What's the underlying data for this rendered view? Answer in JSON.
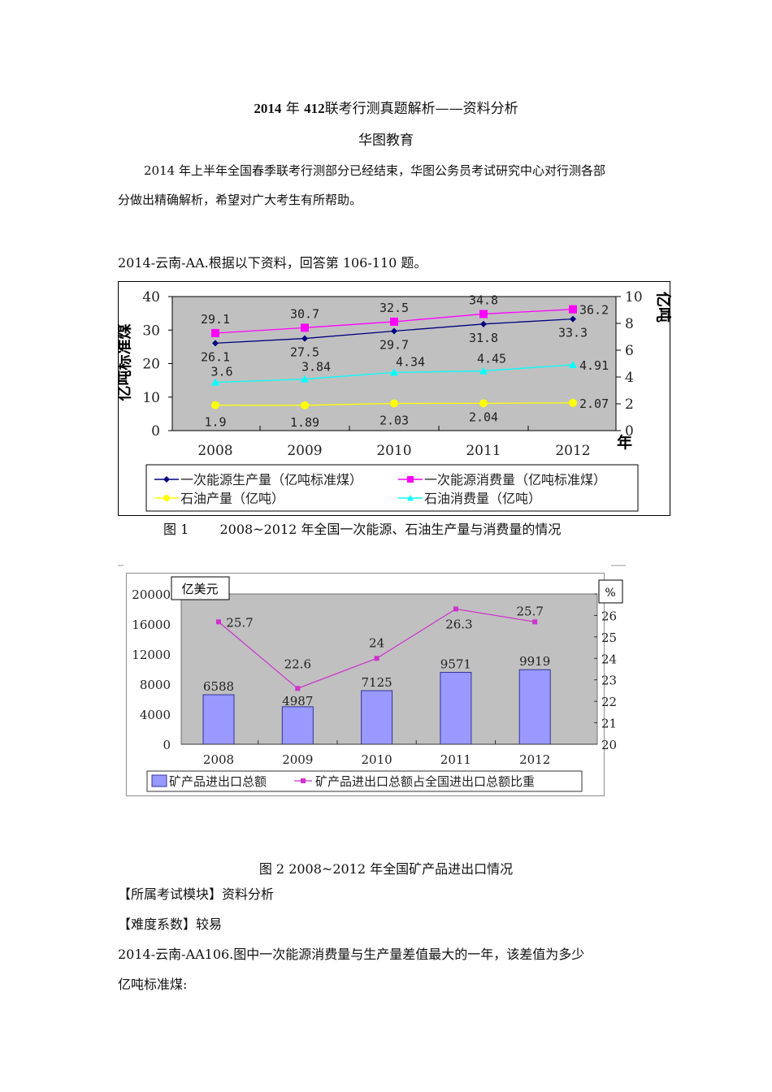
{
  "document": {
    "title_prefix_num": "2014",
    "title_year_char": "年",
    "title_num2": "412",
    "title_rest": "联考行测真题解析——资料分析",
    "subtitle": "华图教育",
    "intro_line1": "2014 年上半年全国春季联考行测部分已经结束，华图公务员考试研究中心对行测各部",
    "intro_line2": "分做出精确解析，希望对广大考生有所帮助。",
    "question_intro": "2014-云南-AA.根据以下资料，回答第 106-110 题。",
    "figure1_caption_label": "图  1",
    "figure1_caption_text": "2008~2012 年全国一次能源、石油生产量与消费量的情况",
    "figure2_caption": "图 2 2008~2012 年全国矿产品进出口情况",
    "module_line": "【所属考试模块】资料分析",
    "difficulty_line": "【难度系数】较易",
    "question_line1": "2014-云南-AA106.图中一次能源消费量与生产量差值最大的一年，该差值为多少",
    "question_line2": "亿吨标准煤:"
  },
  "chart_data": [
    {
      "type": "line",
      "title": "2008~2012 年全国一次能源、石油生产量与消费量的情况",
      "categories": [
        "2008",
        "2009",
        "2010",
        "2011",
        "2012"
      ],
      "xlabel": "年",
      "ylabel": "亿吨标准煤",
      "ylabel_right": "亿吨",
      "ylim": [
        0,
        40
      ],
      "ylim_right": [
        0,
        10
      ],
      "yticks": [
        "0",
        "10",
        "20",
        "30",
        "40"
      ],
      "yticks_right": [
        "0",
        "2",
        "4",
        "6",
        "8",
        "10"
      ],
      "grid": false,
      "legend_position": "bottom",
      "series": [
        {
          "name": "一次能源生产量（亿吨标准煤）",
          "axis": "left",
          "color": "#000080",
          "marker": "diamond",
          "values": [
            26.1,
            27.5,
            29.7,
            31.8,
            33.3
          ],
          "labels": [
            "26.1",
            "27.5",
            "29.7",
            "31.8",
            "33.3"
          ]
        },
        {
          "name": "一次能源消费量（亿吨标准煤）",
          "axis": "left",
          "color": "#ff00ff",
          "marker": "square",
          "values": [
            29.1,
            30.7,
            32.5,
            34.8,
            36.2
          ],
          "labels": [
            "29.1",
            "30.7",
            "32.5",
            "34.8",
            "36.2"
          ]
        },
        {
          "name": "石油产量（亿吨）",
          "axis": "right",
          "color": "#ffff00",
          "marker": "circle",
          "values": [
            1.9,
            1.89,
            2.03,
            2.04,
            2.07
          ],
          "labels": [
            "1.9",
            "1.89",
            "2.03",
            "2.04",
            "2.07"
          ]
        },
        {
          "name": "石油消费量（亿吨）",
          "axis": "right",
          "color": "#00ffff",
          "marker": "triangle",
          "values": [
            3.6,
            3.84,
            4.34,
            4.45,
            4.91
          ],
          "labels": [
            "3.6",
            "3.84",
            "4.34",
            "4.45",
            "4.91"
          ]
        }
      ]
    },
    {
      "type": "bar",
      "title": "图 2 2008~2012 年全国矿产品进出口情况",
      "categories": [
        "2008",
        "2009",
        "2010",
        "2011",
        "2012"
      ],
      "ylabel": "亿美元",
      "ylabel_right": "%",
      "ylim": [
        0,
        20000
      ],
      "ylim_right": [
        20,
        27
      ],
      "yticks": [
        "0",
        "4000",
        "8000",
        "12000",
        "16000",
        "20000"
      ],
      "yticks_right": [
        "20",
        "21",
        "22",
        "23",
        "24",
        "25",
        "26",
        "27"
      ],
      "grid": false,
      "legend_position": "bottom",
      "series": [
        {
          "name": "矿产品进出口总额",
          "type": "bar",
          "axis": "left",
          "color": "#9999ff",
          "values": [
            6588,
            4987,
            7125,
            9571,
            9919
          ],
          "labels": [
            "6588",
            "4987",
            "7125",
            "9571",
            "9919"
          ]
        },
        {
          "name": "矿产品进出口总额占全国进出口总额比重",
          "type": "line",
          "axis": "right",
          "color": "#cc33cc",
          "marker": "square",
          "values": [
            25.7,
            22.6,
            24,
            26.3,
            25.7
          ],
          "labels": [
            "25.7",
            "22.6",
            "24",
            "26.3",
            "25.7"
          ]
        }
      ]
    }
  ],
  "colors": {
    "plot_bg": "#c0c0c0",
    "bar_fill": "#9999ff",
    "bar_stroke": "#333399"
  }
}
